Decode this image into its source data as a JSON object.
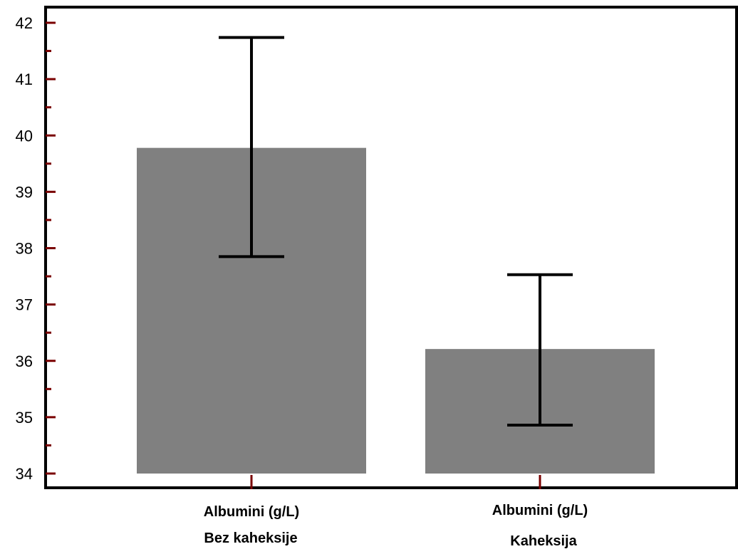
{
  "chart_data": {
    "type": "bar",
    "title": "",
    "xlabel": "",
    "ylabel": "",
    "ylim": [
      34,
      42
    ],
    "y_ticks": [
      34,
      35,
      36,
      37,
      38,
      39,
      40,
      41,
      42
    ],
    "y_tick_labels": [
      "34",
      "35",
      "36",
      "37",
      "38",
      "39",
      "40",
      "41",
      "42"
    ],
    "y_minor_step": 0.5,
    "grid": false,
    "legend": "none",
    "categories": [
      {
        "line1": "Albumini (g/L)",
        "line2": "Bez kaheksije"
      },
      {
        "line1": "Albumini (g/L)",
        "line2": "Kaheksija"
      }
    ],
    "series": [
      {
        "values": [
          39.78,
          36.21
        ],
        "error_low": [
          37.85,
          34.86
        ],
        "error_high": [
          41.74,
          37.53
        ]
      }
    ],
    "colors": {
      "bar": "#808080",
      "axis": "#000000",
      "tick": "#7a0000",
      "error_bar": "#000000"
    }
  }
}
